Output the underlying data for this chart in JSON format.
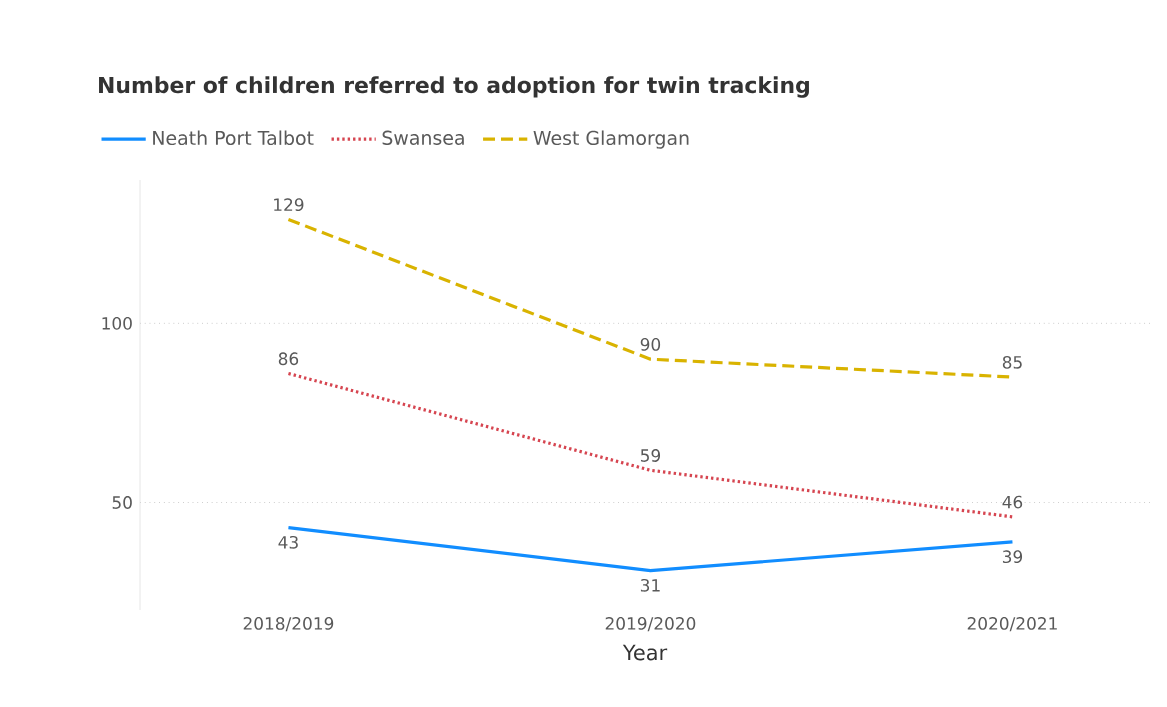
{
  "chart_data": {
    "type": "line",
    "title": "Number of children referred to adoption for twin tracking",
    "xlabel": "Year",
    "categories": [
      "2018/2019",
      "2019/2020",
      "2020/2021"
    ],
    "series": [
      {
        "name": "Neath Port Talbot",
        "color": "#118dff",
        "line_style": "solid",
        "values": [
          43,
          31,
          39
        ]
      },
      {
        "name": "Swansea",
        "color": "#d64550",
        "line_style": "dotted",
        "values": [
          86,
          59,
          46
        ]
      },
      {
        "name": "West Glamorgan",
        "color": "#d9b300",
        "line_style": "dashed",
        "values": [
          129,
          90,
          85
        ]
      }
    ],
    "ylim": [
      20,
      140
    ],
    "yticks": [
      50,
      100
    ],
    "grid": "y",
    "legend": "top left",
    "data_labels": true,
    "marker": "none"
  }
}
